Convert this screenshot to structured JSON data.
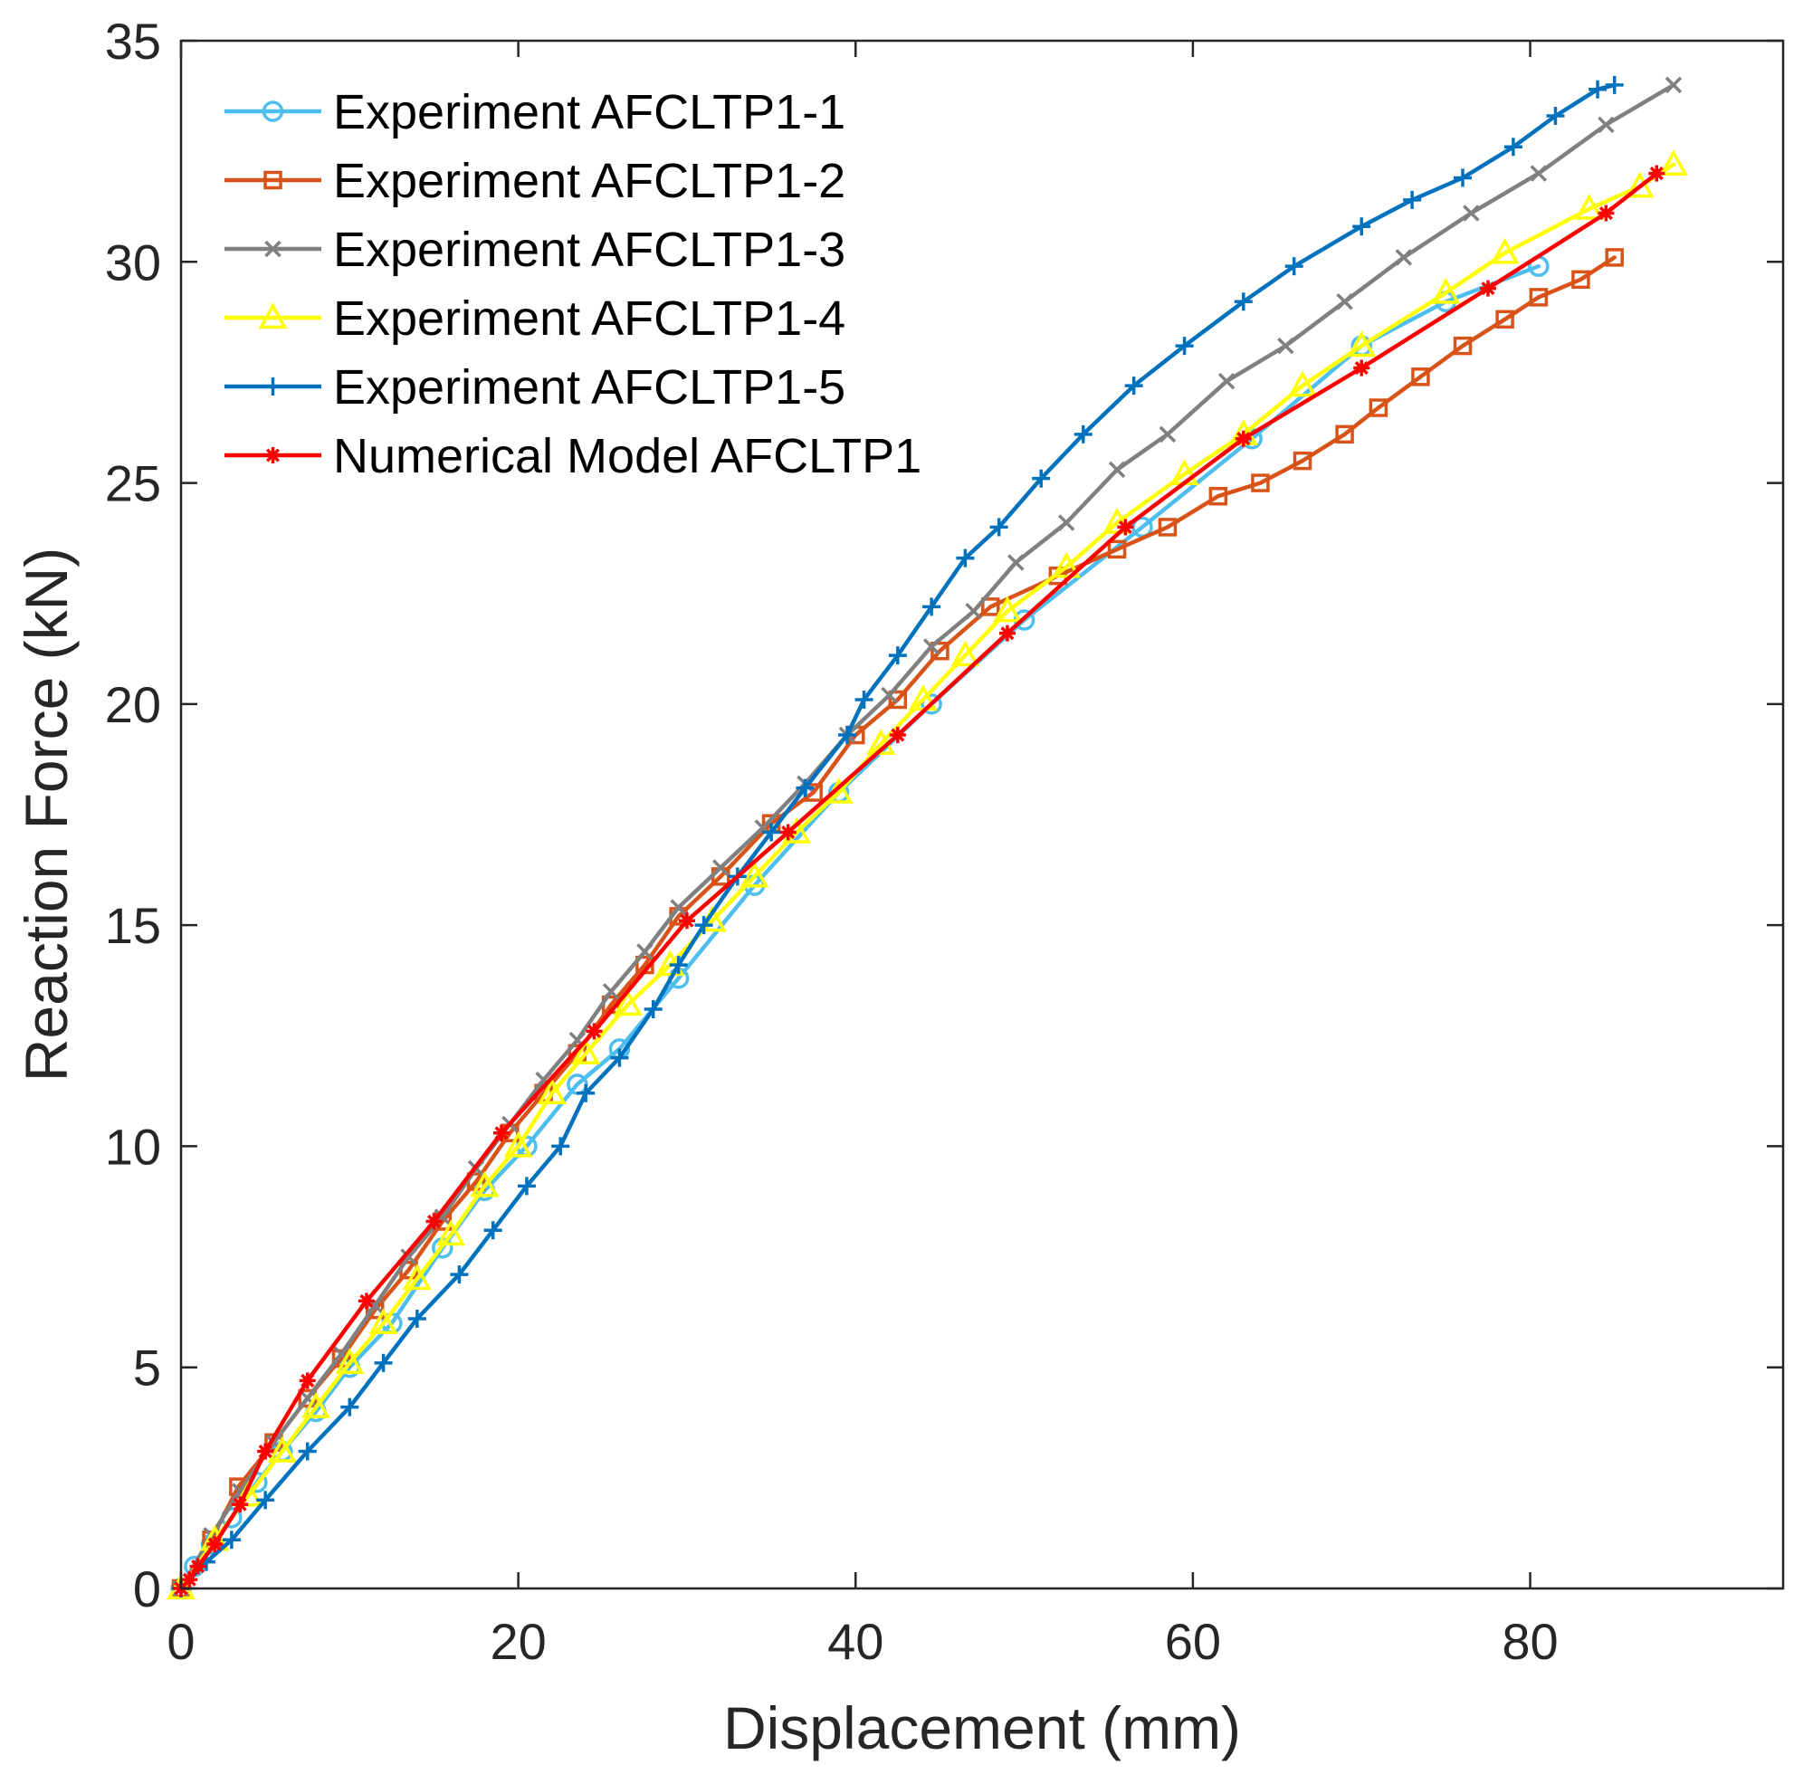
{
  "chart_data": {
    "type": "line",
    "title": "",
    "xlabel": "Displacement (mm)",
    "ylabel": "Reaction Force (kN)",
    "xlim": [
      0,
      95
    ],
    "ylim": [
      0,
      35
    ],
    "xticks": [
      0,
      20,
      40,
      60,
      80
    ],
    "yticks": [
      0,
      5,
      10,
      15,
      20,
      25,
      30,
      35
    ],
    "grid": false,
    "legend_position": "top-left",
    "series": [
      {
        "name": "Experiment AFCLTP1-1",
        "color": "#4DBEEE",
        "marker": "circle",
        "x": [
          0,
          0.8,
          1.8,
          3.0,
          4.5,
          6.0,
          8.0,
          10.0,
          12.5,
          15.5,
          18.0,
          20.5,
          23.5,
          26.0,
          29.5,
          34.0,
          39.0,
          44.5,
          50.0,
          57.0,
          63.5,
          70.0,
          75.0,
          80.5
        ],
        "y": [
          0,
          0.5,
          1.0,
          1.6,
          2.4,
          3.1,
          4.0,
          5.0,
          6.0,
          7.7,
          9.0,
          10.0,
          11.4,
          12.2,
          13.8,
          15.9,
          18.0,
          20.0,
          21.9,
          24.0,
          26.0,
          28.1,
          29.1,
          29.9
        ]
      },
      {
        "name": "Experiment AFCLTP1-2",
        "color": "#D95319",
        "marker": "square",
        "x": [
          0,
          1.8,
          3.4,
          5.5,
          7.5,
          9.5,
          11.5,
          13.5,
          15.5,
          17.5,
          19.5,
          21.5,
          23.5,
          25.5,
          27.5,
          29.5,
          32.0,
          35.0,
          37.5,
          40.0,
          42.5,
          45.0,
          48.0,
          52.0,
          55.5,
          58.5,
          61.5,
          64.0,
          66.5,
          69.0,
          71.0,
          73.5,
          76.0,
          78.5,
          80.5,
          83.0,
          85.0
        ],
        "y": [
          0,
          1.1,
          2.3,
          3.3,
          4.3,
          5.2,
          6.3,
          7.2,
          8.3,
          9.2,
          10.3,
          11.2,
          12.1,
          13.2,
          14.1,
          15.2,
          16.1,
          17.3,
          18.0,
          19.3,
          20.1,
          21.2,
          22.2,
          22.9,
          23.5,
          24.0,
          24.7,
          25.0,
          25.5,
          26.1,
          26.7,
          27.4,
          28.1,
          28.7,
          29.2,
          29.6,
          30.1
        ]
      },
      {
        "name": "Experiment AFCLTP1-3",
        "color": "#808080",
        "marker": "x",
        "x": [
          0,
          1.8,
          3.5,
          5.5,
          7.5,
          9.5,
          11.5,
          13.5,
          15.5,
          17.5,
          19.5,
          21.5,
          23.5,
          25.5,
          27.5,
          29.5,
          32.0,
          34.5,
          37.0,
          39.5,
          42.0,
          44.5,
          47.0,
          49.5,
          52.5,
          55.5,
          58.5,
          62.0,
          65.5,
          69.0,
          72.5,
          76.5,
          80.5,
          84.5,
          88.5
        ],
        "y": [
          0,
          1.2,
          2.2,
          3.3,
          4.3,
          5.3,
          6.4,
          7.5,
          8.4,
          9.5,
          10.5,
          11.5,
          12.4,
          13.5,
          14.4,
          15.4,
          16.3,
          17.2,
          18.2,
          19.3,
          20.2,
          21.3,
          22.1,
          23.2,
          24.1,
          25.3,
          26.1,
          27.3,
          28.1,
          29.1,
          30.1,
          31.1,
          32.0,
          33.1,
          34.0
        ]
      },
      {
        "name": "Experiment AFCLTP1-4",
        "color": "#FFFF00",
        "marker": "triangle",
        "x": [
          0,
          2.0,
          4.0,
          6.0,
          8.0,
          10.0,
          12.0,
          14.0,
          16.0,
          18.0,
          20.0,
          22.0,
          24.0,
          26.5,
          29.0,
          31.5,
          34.0,
          36.5,
          39.0,
          41.5,
          44.0,
          46.5,
          49.0,
          52.5,
          55.5,
          59.5,
          63.0,
          66.5,
          70.0,
          75.0,
          78.5,
          83.5,
          86.5,
          88.5
        ],
        "y": [
          0,
          1.1,
          2.1,
          3.1,
          4.1,
          5.1,
          6.0,
          7.0,
          8.0,
          9.1,
          10.0,
          11.2,
          12.1,
          13.2,
          14.1,
          15.1,
          16.1,
          17.1,
          18.0,
          19.1,
          20.1,
          21.1,
          22.1,
          23.1,
          24.1,
          25.2,
          26.1,
          27.2,
          28.1,
          29.3,
          30.2,
          31.2,
          31.7,
          32.2
        ]
      },
      {
        "name": "Experiment AFCLTP1-5",
        "color": "#0072BD",
        "marker": "plus",
        "x": [
          0,
          1.5,
          3.0,
          5.0,
          7.5,
          10.0,
          12.0,
          14.0,
          16.5,
          18.5,
          20.5,
          22.5,
          24.0,
          26.0,
          28.0,
          29.5,
          31.0,
          33.0,
          35.0,
          37.0,
          39.5,
          40.5,
          42.5,
          44.5,
          46.5,
          48.5,
          51.0,
          53.5,
          56.5,
          59.5,
          63.0,
          66.0,
          70.0,
          73.0,
          76.0,
          79.0,
          81.5,
          84.0,
          85.0
        ],
        "y": [
          0,
          0.6,
          1.1,
          2.0,
          3.1,
          4.1,
          5.1,
          6.1,
          7.1,
          8.1,
          9.1,
          10.0,
          11.2,
          12.0,
          13.1,
          14.1,
          15.0,
          16.1,
          17.1,
          18.1,
          19.3,
          20.1,
          21.1,
          22.2,
          23.3,
          24.0,
          25.1,
          26.1,
          27.2,
          28.1,
          29.1,
          29.9,
          30.8,
          31.4,
          31.9,
          32.6,
          33.3,
          33.9,
          34.0
        ]
      },
      {
        "name": "Numerical Model AFCLTP1",
        "color": "#FF0000",
        "marker": "asterisk",
        "x": [
          0,
          0.5,
          1.0,
          2.0,
          3.5,
          5.0,
          7.5,
          11.0,
          15.0,
          19.0,
          24.5,
          30.0,
          36.0,
          42.5,
          49.0,
          56.0,
          63.0,
          70.0,
          77.5,
          84.5,
          87.5
        ],
        "y": [
          0,
          0.2,
          0.5,
          1.0,
          1.9,
          3.1,
          4.7,
          6.5,
          8.3,
          10.3,
          12.6,
          15.1,
          17.1,
          19.3,
          21.6,
          24.0,
          26.0,
          27.6,
          29.4,
          31.1,
          32.0
        ]
      }
    ]
  }
}
